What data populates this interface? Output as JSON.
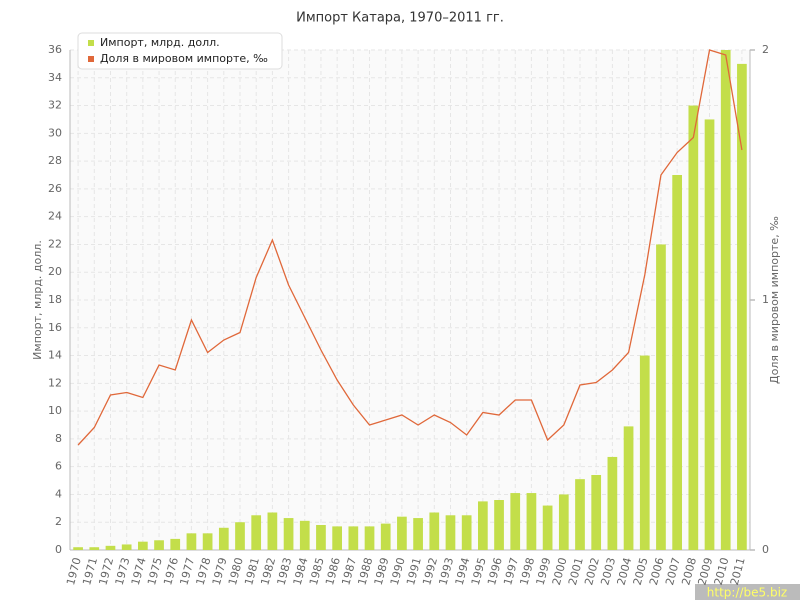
{
  "chart_data": {
    "type": "bar_line",
    "title": "Импорт Катара, 1970–2011 гг.",
    "y_label": "Импорт, млрд. долл.",
    "y2_label": "Доля в мировом импорте, ‰",
    "watermark": "http://be5.biz",
    "categories": [
      "1970",
      "1971",
      "1972",
      "1973",
      "1974",
      "1975",
      "1976",
      "1977",
      "1978",
      "1979",
      "1980",
      "1981",
      "1982",
      "1983",
      "1984",
      "1985",
      "1986",
      "1987",
      "1988",
      "1989",
      "1990",
      "1991",
      "1992",
      "1993",
      "1994",
      "1995",
      "1996",
      "1997",
      "1998",
      "1999",
      "2000",
      "2001",
      "2002",
      "2003",
      "2004",
      "2005",
      "2006",
      "2007",
      "2008",
      "2009",
      "2010",
      "2011"
    ],
    "series": [
      {
        "name": "Импорт, млрд. долл.",
        "color": "#c3de4a",
        "kind": "bar",
        "values": [
          0.2,
          0.2,
          0.3,
          0.4,
          0.6,
          0.7,
          0.8,
          1.2,
          1.2,
          1.6,
          2.0,
          2.5,
          2.7,
          2.3,
          2.1,
          1.8,
          1.7,
          1.7,
          1.7,
          1.9,
          2.4,
          2.3,
          2.7,
          2.5,
          2.5,
          3.5,
          3.6,
          4.1,
          4.1,
          3.2,
          4.0,
          5.1,
          5.4,
          6.7,
          8.9,
          14,
          22,
          27,
          32,
          31,
          36,
          35
        ]
      },
      {
        "name": "Доля в мировом импорте, ‰",
        "color": "#e0683a",
        "kind": "line",
        "axis": "y2",
        "values": [
          0.42,
          0.49,
          0.62,
          0.63,
          0.61,
          0.74,
          0.72,
          0.92,
          0.79,
          0.84,
          0.87,
          1.09,
          1.24,
          1.06,
          0.93,
          0.8,
          0.68,
          0.58,
          0.5,
          0.52,
          0.54,
          0.5,
          0.54,
          0.51,
          0.46,
          0.55,
          0.54,
          0.6,
          0.6,
          0.44,
          0.5,
          0.66,
          0.67,
          0.72,
          0.79,
          1.1,
          1.5,
          1.59,
          1.65,
          2.0,
          1.98,
          1.6
        ]
      }
    ],
    "ylim": [
      0,
      36
    ],
    "yticks": [
      0,
      2,
      4,
      6,
      8,
      10,
      12,
      14,
      16,
      18,
      20,
      22,
      24,
      26,
      28,
      30,
      32,
      34,
      36
    ],
    "y2lim": [
      0,
      2
    ],
    "y2ticks": [
      0,
      1,
      2
    ],
    "grid": true,
    "legend": "top-left"
  }
}
